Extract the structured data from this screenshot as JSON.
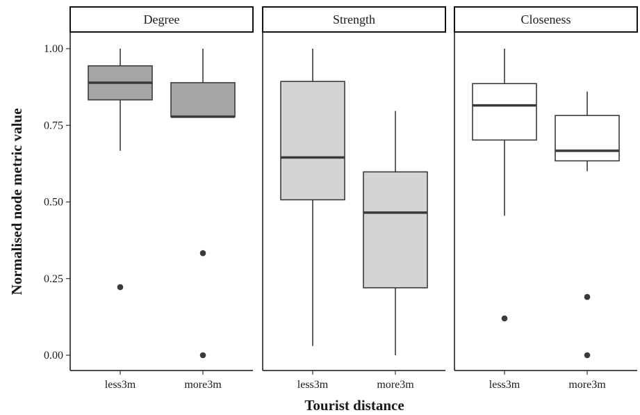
{
  "chart_data": {
    "type": "boxplot",
    "xlabel": "Tourist distance",
    "ylabel": "Normalised node metric value",
    "ylim": [
      0,
      1
    ],
    "yticks": [
      0.0,
      0.25,
      0.5,
      0.75,
      1.0
    ],
    "ytick_labels": [
      "0.00",
      "0.25",
      "0.50",
      "0.75",
      "1.00"
    ],
    "categories": [
      "less3m",
      "more3m"
    ],
    "grid": false,
    "panels": [
      {
        "name": "Degree",
        "fill": "#a6a6a6",
        "boxes": [
          {
            "category": "less3m",
            "whisker_low": 0.667,
            "q1": 0.833,
            "median": 0.889,
            "q3": 0.944,
            "whisker_high": 1.0,
            "outliers": [
              0.222
            ]
          },
          {
            "category": "more3m",
            "whisker_low": 0.778,
            "q1": 0.778,
            "median": 0.778,
            "q3": 0.889,
            "whisker_high": 1.0,
            "outliers": [
              0.333,
              0.0
            ]
          }
        ]
      },
      {
        "name": "Strength",
        "fill": "#d4d4d4",
        "boxes": [
          {
            "category": "less3m",
            "whisker_low": 0.03,
            "q1": 0.507,
            "median": 0.645,
            "q3": 0.893,
            "whisker_high": 1.0,
            "outliers": []
          },
          {
            "category": "more3m",
            "whisker_low": 0.0,
            "q1": 0.22,
            "median": 0.465,
            "q3": 0.598,
            "whisker_high": 0.797,
            "outliers": []
          }
        ]
      },
      {
        "name": "Closeness",
        "fill": "#ffffff",
        "boxes": [
          {
            "category": "less3m",
            "whisker_low": 0.455,
            "q1": 0.702,
            "median": 0.815,
            "q3": 0.886,
            "whisker_high": 1.0,
            "outliers": [
              0.12
            ]
          },
          {
            "category": "more3m",
            "whisker_low": 0.6,
            "q1": 0.634,
            "median": 0.667,
            "q3": 0.782,
            "whisker_high": 0.86,
            "outliers": [
              0.19,
              0.0
            ]
          }
        ]
      }
    ]
  }
}
